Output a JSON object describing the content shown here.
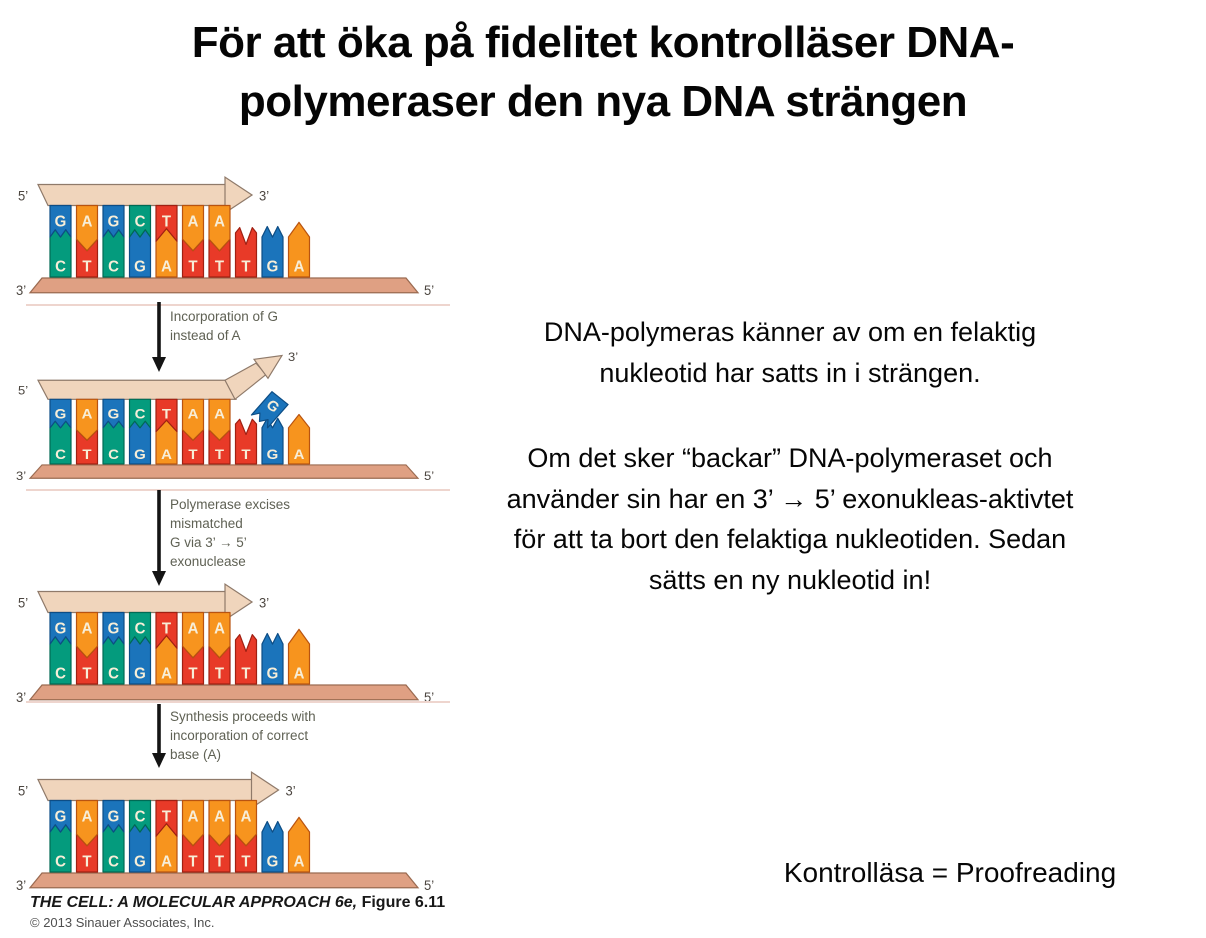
{
  "slide": {
    "title": "För att öka på fidelitet kontrolläser DNA-\npolymeraser den nya DNA strängen",
    "paragraph_1": "DNA-polymeras känner av om en felaktig\nnukleotid har satts in i strängen.",
    "paragraph_2": "Om det sker “backar” DNA-polymeraset och\nanvänder sin har en 3’ → 5’ exonukleas-aktivtet\nför att ta bort den felaktiga nukleotiden. Sedan\nsätts en ny nukleotid in!",
    "footnote": "Kontrolläsa = Proofreading"
  },
  "figure": {
    "steps": [
      {
        "label": "Incorporation of G\ninstead of A"
      },
      {
        "label": "Polymerase excises\nmismatched\nG via 3’ → 5’\nexonuclease"
      },
      {
        "label": "Synthesis proceeds with\nincorporation of correct\nbase (A)"
      }
    ],
    "citation_title": "THE CELL: A MOLECULAR APPROACH 6e,",
    "citation_figure": " Figure 6.11",
    "copyright": "© 2013 Sinauer Associates, Inc.",
    "colors": {
      "base_fill": {
        "G": "#1b74bb",
        "C": "#049b7d",
        "A": "#f7941e",
        "T": "#e83a28"
      },
      "base_stroke": {
        "G": "#0d4d85",
        "C": "#006a54",
        "A": "#b95310",
        "T": "#a02012"
      },
      "letter": "#f7eed8",
      "arrow_fill": "#f0d5bc",
      "arrow_stroke": "#8f7a6a",
      "bar_fill": "#dfa083",
      "bar_stroke": "#9b6b51",
      "prime": "#4c4640"
    },
    "panels": [
      {
        "name": "initial",
        "top_strand": [
          "G",
          "A",
          "G",
          "C",
          "T",
          "A",
          "A"
        ],
        "bottom_strand": [
          "C",
          "T",
          "C",
          "G",
          "A",
          "T",
          "T",
          "T",
          "G",
          "A"
        ],
        "paired": 7,
        "arrow": "straight",
        "mismatch": null,
        "ends": {
          "top_left": "5’",
          "top_right": "3’",
          "bottom_left": "3’",
          "bottom_right": "5’"
        }
      },
      {
        "name": "mismatch-incorporated",
        "top_strand": [
          "G",
          "A",
          "G",
          "C",
          "T",
          "A",
          "A"
        ],
        "bottom_strand": [
          "C",
          "T",
          "C",
          "G",
          "A",
          "T",
          "T",
          "T",
          "G",
          "A"
        ],
        "paired": 7,
        "arrow": "bent",
        "mismatch": "G",
        "ends": {
          "top_left": "5’",
          "top_right": "3’",
          "bottom_left": "3’",
          "bottom_right": "5’"
        }
      },
      {
        "name": "excised",
        "top_strand": [
          "G",
          "A",
          "G",
          "C",
          "T",
          "A",
          "A"
        ],
        "bottom_strand": [
          "C",
          "T",
          "C",
          "G",
          "A",
          "T",
          "T",
          "T",
          "G",
          "A"
        ],
        "paired": 7,
        "arrow": "straight",
        "mismatch": null,
        "ends": {
          "top_left": "5’",
          "top_right": "3’",
          "bottom_left": "3’",
          "bottom_right": "5’"
        }
      },
      {
        "name": "corrected",
        "top_strand": [
          "G",
          "A",
          "G",
          "C",
          "T",
          "A",
          "A",
          "A"
        ],
        "bottom_strand": [
          "C",
          "T",
          "C",
          "G",
          "A",
          "T",
          "T",
          "T",
          "G",
          "A"
        ],
        "paired": 8,
        "arrow": "straight",
        "mismatch": null,
        "ends": {
          "top_left": "5’",
          "top_right": "3’",
          "bottom_left": "3’",
          "bottom_right": "5’"
        }
      }
    ]
  }
}
